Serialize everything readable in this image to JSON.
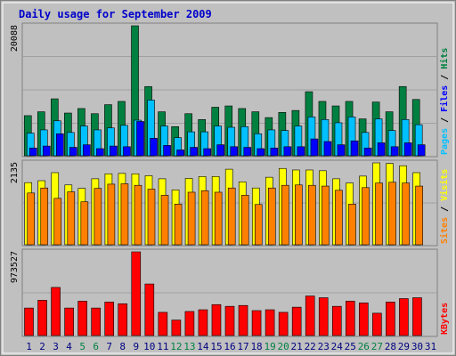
{
  "chart_data": {
    "type": "bar",
    "title": "Daily usage for September 2009",
    "categories": [
      "1",
      "2",
      "3",
      "4",
      "5",
      "6",
      "7",
      "8",
      "9",
      "10",
      "11",
      "12",
      "13",
      "14",
      "15",
      "16",
      "17",
      "18",
      "19",
      "20",
      "21",
      "22",
      "23",
      "24",
      "25",
      "26",
      "27",
      "28",
      "29",
      "30",
      "31"
    ],
    "weekend_days": [
      "5",
      "6",
      "12",
      "13",
      "19",
      "20",
      "26",
      "27"
    ],
    "panels": [
      {
        "name": "hits-files-pages",
        "max_label": "20088",
        "ymax": 20088,
        "series": [
          {
            "name": "Hits",
            "color": "#008040",
            "values": [
              6200,
              6800,
              8800,
              6600,
              7300,
              6500,
              7900,
              8400,
              20088,
              10700,
              6800,
              4500,
              6500,
              5600,
              7500,
              7700,
              7300,
              6800,
              5900,
              6700,
              7000,
              9900,
              8400,
              7700,
              8400,
              5700,
              8300,
              6800,
              10700,
              8700,
              null
            ]
          },
          {
            "name": "Files",
            "color": "#00c0ff",
            "values": [
              3500,
              4000,
              5400,
              3600,
              4600,
              4000,
              4300,
              4700,
              5500,
              8600,
              4600,
              2800,
              3700,
              3700,
              4600,
              4400,
              4500,
              3400,
              4000,
              3900,
              4600,
              6000,
              5600,
              5100,
              6000,
              3600,
              5700,
              3900,
              5600,
              4800,
              null
            ]
          },
          {
            "name": "Pages",
            "color": "#0000ff",
            "values": [
              1200,
              1500,
              3400,
              1300,
              1700,
              1100,
              1500,
              1400,
              5300,
              2700,
              1600,
              900,
              1300,
              1100,
              1700,
              1400,
              1300,
              1100,
              1200,
              1400,
              1400,
              2600,
              2200,
              1700,
              2300,
              1200,
              2000,
              1400,
              2000,
              1700,
              null
            ]
          }
        ],
        "right_labels": [
          {
            "text": "Pages",
            "color": "#00c0ff"
          },
          {
            "text": " / ",
            "color": "#000000"
          },
          {
            "text": "Files",
            "color": "#0000ff"
          },
          {
            "text": " / ",
            "color": "#000000"
          },
          {
            "text": "Hits",
            "color": "#008040"
          }
        ]
      },
      {
        "name": "visits-sites",
        "max_label": "2135",
        "ymax": 2135,
        "series": [
          {
            "name": "Visits",
            "color": "#ffff00",
            "values": [
              1620,
              1670,
              1880,
              1560,
              1470,
              1720,
              1850,
              1860,
              1850,
              1800,
              1720,
              1430,
              1730,
              1780,
              1780,
              1970,
              1640,
              1480,
              1760,
              1990,
              1950,
              1950,
              1930,
              1720,
              1610,
              1790,
              2135,
              2120,
              2060,
              1880,
              null
            ]
          },
          {
            "name": "Sites",
            "color": "#ff8000",
            "values": [
              1350,
              1480,
              1210,
              1380,
              1120,
              1470,
              1580,
              1590,
              1550,
              1450,
              1290,
              1060,
              1370,
              1410,
              1370,
              1480,
              1290,
              1050,
              1480,
              1550,
              1560,
              1550,
              1530,
              1420,
              1060,
              1490,
              1610,
              1630,
              1610,
              1530,
              null
            ]
          }
        ],
        "right_labels": [
          {
            "text": "Sites",
            "color": "#ff8000"
          },
          {
            "text": " / ",
            "color": "#000000"
          },
          {
            "text": "Visits",
            "color": "#ffff00"
          }
        ]
      },
      {
        "name": "kbytes",
        "max_label": "973527",
        "ymax": 973527,
        "series": [
          {
            "name": "KBytes",
            "color": "#ff0000",
            "values": [
              320000,
              410000,
              560000,
              320000,
              400000,
              320000,
              390000,
              370000,
              973527,
              600000,
              270000,
              180000,
              280000,
              300000,
              360000,
              340000,
              350000,
              290000,
              300000,
              270000,
              330000,
              460000,
              440000,
              340000,
              400000,
              380000,
              260000,
              390000,
              430000,
              440000,
              null
            ]
          }
        ],
        "right_labels": [
          {
            "text": "KBytes",
            "color": "#ff0000"
          }
        ]
      }
    ],
    "grid": true,
    "colors": {
      "plot_background": "#c0c0c0",
      "frame": "#808080",
      "gridline": "#a0a0a0",
      "tick_weekday": "#000080",
      "tick_weekend": "#008040",
      "title": "#0000cc"
    }
  }
}
